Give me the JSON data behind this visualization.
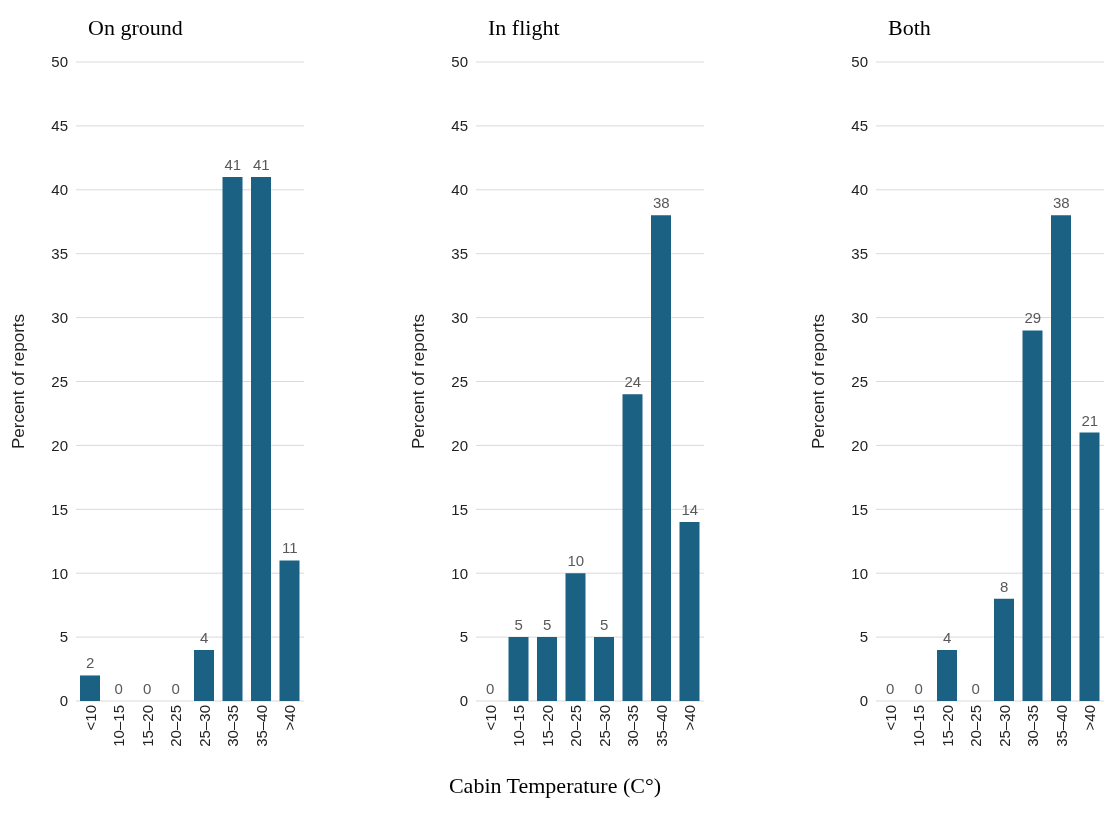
{
  "chart_data": [
    {
      "type": "bar",
      "title": "On ground",
      "ylabel": "Percent of reports",
      "categories": [
        "<10",
        "10–15",
        "15–20",
        "20–25",
        "25–30",
        "30–35",
        "35–40",
        ">40"
      ],
      "values": [
        2,
        0,
        0,
        0,
        4,
        41,
        41,
        11
      ],
      "color": "#1b6183",
      "ylim": [
        0,
        50
      ],
      "yticks": [
        0,
        5,
        10,
        15,
        20,
        25,
        30,
        35,
        40,
        45,
        50
      ],
      "grid": "y",
      "data_labels": true
    },
    {
      "type": "bar",
      "title": "In flight",
      "ylabel": "Percent of reports",
      "xlabel": "Cabin Temperature (C°)",
      "categories": [
        "<10",
        "10–15",
        "15–20",
        "20–25",
        "25–30",
        "30–35",
        "35–40",
        ">40"
      ],
      "values": [
        0,
        5,
        5,
        10,
        5,
        24,
        38,
        14
      ],
      "color": "#1b6183",
      "ylim": [
        0,
        50
      ],
      "yticks": [
        0,
        5,
        10,
        15,
        20,
        25,
        30,
        35,
        40,
        45,
        50
      ],
      "grid": "y",
      "data_labels": true
    },
    {
      "type": "bar",
      "title": "Both",
      "ylabel": "Percent of reports",
      "categories": [
        "<10",
        "10–15",
        "15–20",
        "20–25",
        "25–30",
        "30–35",
        "35–40",
        ">40"
      ],
      "values": [
        0,
        0,
        4,
        0,
        8,
        29,
        38,
        21
      ],
      "color": "#1b6183",
      "ylim": [
        0,
        50
      ],
      "yticks": [
        0,
        5,
        10,
        15,
        20,
        25,
        30,
        35,
        40,
        45,
        50
      ],
      "grid": "y",
      "data_labels": true
    }
  ]
}
